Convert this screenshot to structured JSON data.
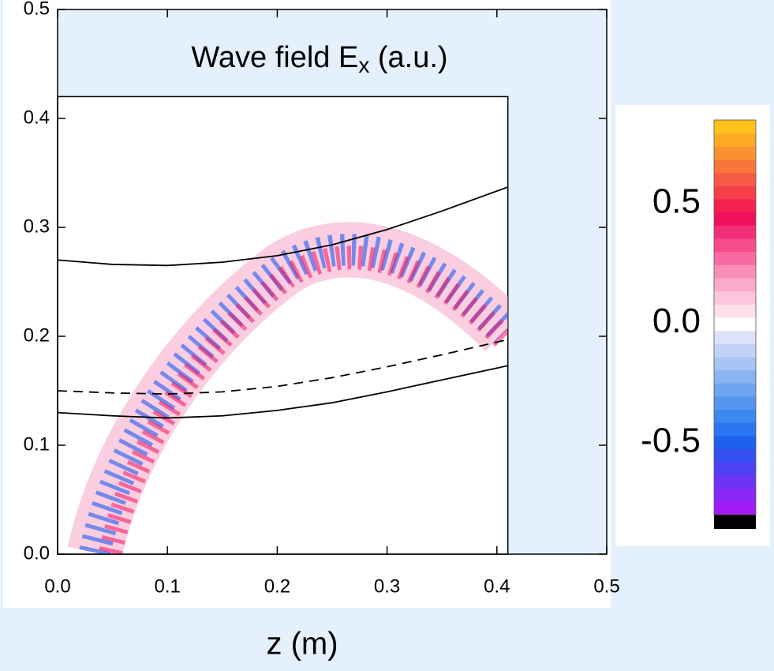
{
  "chart_data": {
    "type": "field",
    "title": [
      "Wave field E",
      "x",
      " (a.u.)"
    ],
    "xlabel": "z (m)",
    "xlim": [
      0,
      0.5
    ],
    "ylim": [
      0,
      0.5
    ],
    "xticks": [
      {
        "value": 0,
        "label": "0.0"
      },
      0.1,
      0.2,
      0.3,
      0.4,
      0.5
    ],
    "yticks": [
      {
        "value": 0,
        "label": "0.0"
      },
      0.1,
      0.2,
      0.3,
      0.4,
      0.5
    ],
    "domain": {
      "x": [
        0,
        0.41
      ],
      "y": [
        0,
        0.42
      ]
    },
    "series": [
      {
        "color": "#000000",
        "dash": false,
        "x": [
          0,
          0.05,
          0.1,
          0.15,
          0.2,
          0.25,
          0.3,
          0.35,
          0.41
        ],
        "values": [
          0.27,
          0.266,
          0.265,
          0.268,
          0.274,
          0.284,
          0.298,
          0.315,
          0.337
        ]
      },
      {
        "color": "#000000",
        "dash": true,
        "x": [
          0,
          0.05,
          0.1,
          0.15,
          0.2,
          0.25,
          0.3,
          0.35,
          0.41
        ],
        "values": [
          0.15,
          0.148,
          0.147,
          0.149,
          0.154,
          0.162,
          0.172,
          0.183,
          0.197
        ]
      },
      {
        "color": "#000000",
        "dash": false,
        "x": [
          0,
          0.05,
          0.1,
          0.15,
          0.2,
          0.25,
          0.3,
          0.35,
          0.41
        ],
        "values": [
          0.13,
          0.127,
          0.125,
          0.127,
          0.132,
          0.139,
          0.149,
          0.16,
          0.173
        ]
      }
    ],
    "colorbar": {
      "range": [
        -0.8,
        0.85
      ],
      "ticks": [
        -0.5,
        {
          "value": 0,
          "label": "0.0"
        },
        0.5
      ],
      "under_color": "#000000",
      "colors": [
        "#a21bf7",
        "#8a28f7",
        "#6e34f5",
        "#4f40f2",
        "#3450f0",
        "#2060ee",
        "#2a76f0",
        "#3a88f0",
        "#5596f0",
        "#6fa4f0",
        "#8ab4f2",
        "#a6c4f4",
        "#c2d2f6",
        "#dfe3fa",
        "#ffffff",
        "#fde0ec",
        "#fcc6dc",
        "#fbaaca",
        "#fa8cb8",
        "#f86aa2",
        "#f74c8c",
        "#f2307a",
        "#f0105e",
        "#f42050",
        "#f5404a",
        "#f65a44",
        "#f8763a",
        "#fa9030",
        "#fcaa24",
        "#ffc21a"
      ]
    }
  }
}
